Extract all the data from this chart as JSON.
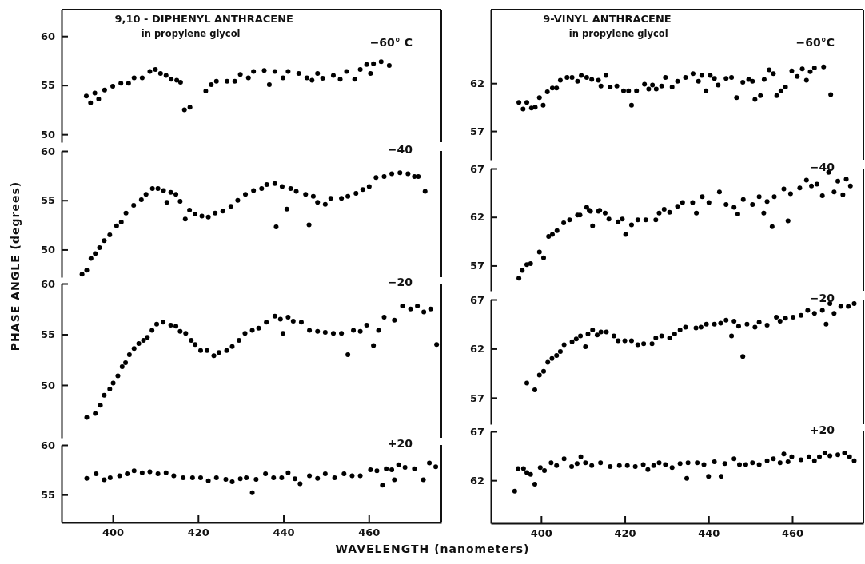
{
  "chart_data": [
    {
      "type": "scatter",
      "title": "9,10 - DIPHENYL ANTHRACENE",
      "subtitle": "in propylene glycol",
      "ylabel": "PHASE ANGLE (degrees)",
      "marker": "circle",
      "xlim": [
        388,
        477
      ],
      "ylim": [
        49.2,
        62.7
      ],
      "yticks": [
        50,
        55,
        60
      ],
      "tick_labels": "y",
      "series": [
        {
          "name": "−60° C",
          "color": "#000000",
          "x": [
            393.8,
            394.8,
            395.8,
            396.7,
            398.1,
            400,
            401.9,
            403.7,
            405,
            406.9,
            408.7,
            410,
            411.2,
            412.5,
            413.7,
            415,
            415.9,
            416.8,
            418.1,
            421.8,
            423.1,
            424.3,
            426.8,
            428.6,
            429.9,
            431.8,
            433,
            435.5,
            436.7,
            438,
            439.9,
            441.1,
            443.6,
            445.5,
            446.7,
            448,
            449.2,
            451.7,
            453.3,
            454.8,
            456.7,
            458,
            459.5,
            460.4,
            461.1,
            462.9,
            464.8
          ],
          "values": [
            53.9,
            53.2,
            54.2,
            53.6,
            54.5,
            54.9,
            55.2,
            55.2,
            55.75,
            55.75,
            56.4,
            56.6,
            56.2,
            56,
            55.6,
            55.5,
            55.3,
            52.5,
            52.75,
            54.4,
            55.05,
            55.4,
            55.4,
            55.4,
            56.1,
            55.75,
            56.4,
            56.5,
            55.05,
            56.4,
            55.75,
            56.4,
            56.2,
            55.75,
            55.5,
            56.2,
            55.7,
            56,
            55.6,
            56.4,
            55.6,
            56.6,
            57.1,
            56.2,
            57.2,
            57.4,
            57
          ]
        }
      ]
    },
    {
      "type": "scatter",
      "marker": "circle",
      "xlim": [
        388,
        477
      ],
      "ylim": [
        47.2,
        60
      ],
      "yticks": [
        50,
        55,
        60
      ],
      "tick_labels": "y",
      "series": [
        {
          "name": "−40",
          "color": "#000000",
          "x": [
            392.8,
            393.9,
            394.9,
            395.9,
            396.9,
            398,
            399.3,
            400.9,
            402,
            403.1,
            404.9,
            406.7,
            407.8,
            409.3,
            410.6,
            411.9,
            412.7,
            413.6,
            414.8,
            415.8,
            417,
            418,
            419.3,
            420.9,
            422.4,
            424,
            425.8,
            427.7,
            429.3,
            431.1,
            433,
            434.9,
            436.1,
            438,
            438.3,
            439.7,
            440.8,
            441.7,
            443,
            445.2,
            446,
            447,
            448,
            449.8,
            451.1,
            453.6,
            455.1,
            457,
            458.6,
            460.1,
            461.7,
            463.6,
            465.4,
            467.3,
            469.2,
            470.7,
            471.6,
            473.2
          ],
          "values": [
            47.5,
            47.9,
            49.1,
            49.6,
            50.2,
            50.9,
            51.5,
            52.4,
            52.8,
            53.7,
            54.5,
            55.05,
            55.6,
            56.2,
            56.2,
            56,
            54.8,
            55.8,
            55.6,
            54.9,
            53.1,
            54,
            53.6,
            53.4,
            53.3,
            53.7,
            53.9,
            54.4,
            55,
            55.6,
            56,
            56.2,
            56.6,
            56.7,
            52.3,
            56.4,
            54.1,
            56.2,
            55.9,
            55.6,
            52.5,
            55.4,
            54.8,
            54.6,
            55.2,
            55.2,
            55.4,
            55.7,
            56.1,
            56.4,
            57.3,
            57.4,
            57.7,
            57.8,
            57.7,
            57.4,
            57.4,
            55.9
          ]
        }
      ]
    },
    {
      "type": "scatter",
      "marker": "circle",
      "xlim": [
        388,
        477
      ],
      "ylim": [
        44.8,
        60
      ],
      "yticks": [
        50,
        55,
        60
      ],
      "tick_labels": "y",
      "series": [
        {
          "name": "−20",
          "color": "#000000",
          "x": [
            393.9,
            395.9,
            397.1,
            398,
            399.3,
            400.1,
            401.2,
            402.2,
            403,
            403.9,
            405,
            406.1,
            407.2,
            408.1,
            409.2,
            410.3,
            411.8,
            413.6,
            414.8,
            415.8,
            417.1,
            418.4,
            419.3,
            420.6,
            422.1,
            423.7,
            424.9,
            426.7,
            428,
            429.6,
            431,
            432.7,
            434.2,
            436,
            438,
            439.3,
            439.9,
            441.1,
            442.3,
            444.2,
            446.1,
            448,
            449.8,
            451.7,
            453.6,
            455.1,
            456.4,
            458,
            459.5,
            461.1,
            462.3,
            463.6,
            466,
            467.9,
            469.8,
            471.4,
            472.9,
            474.5,
            475.9
          ],
          "values": [
            46.8,
            47.2,
            48,
            49,
            49.6,
            50.2,
            50.9,
            51.8,
            52.2,
            53,
            53.6,
            54.1,
            54.4,
            54.7,
            55.4,
            56,
            56.2,
            55.9,
            55.8,
            55.3,
            55.1,
            54.4,
            54,
            53.4,
            53.4,
            52.9,
            53.2,
            53.4,
            53.8,
            54.4,
            55.1,
            55.4,
            55.6,
            56.2,
            56.8,
            56.5,
            55.1,
            56.7,
            56.3,
            56.2,
            55.4,
            55.3,
            55.2,
            55.1,
            55.1,
            53,
            55.4,
            55.3,
            55.9,
            53.9,
            55.4,
            56.7,
            56.4,
            57.8,
            57.5,
            57.8,
            57.2,
            57.5,
            54
          ]
        }
      ]
    },
    {
      "type": "scatter",
      "xlabel": "WAVELENGTH (nanometers)",
      "marker": "circle",
      "xlim": [
        388,
        477
      ],
      "xticks": [
        400,
        420,
        440,
        460
      ],
      "ylim": [
        52.2,
        60
      ],
      "yticks": [
        55,
        60
      ],
      "series": [
        {
          "name": "+20",
          "color": "#000000",
          "x": [
            393.9,
            396.1,
            398,
            399.4,
            401.6,
            403.4,
            405,
            406.9,
            408.7,
            410.6,
            412.5,
            414.3,
            416.5,
            418.7,
            420.6,
            422.4,
            424.3,
            426.5,
            428,
            429.9,
            431.3,
            432.7,
            433.6,
            435.8,
            437.7,
            439.6,
            441.1,
            442.7,
            443.9,
            446.1,
            448,
            449.8,
            452,
            454.2,
            456.1,
            458,
            460.4,
            461.9,
            463.2,
            464.1,
            465.4,
            466,
            467,
            468.5,
            470.7,
            472.8,
            474.2,
            475.7
          ],
          "values": [
            56.65,
            57.1,
            56.5,
            56.7,
            56.9,
            57.1,
            57.4,
            57.2,
            57.3,
            57.1,
            57.2,
            56.9,
            56.7,
            56.7,
            56.7,
            56.4,
            56.7,
            56.55,
            56.3,
            56.6,
            56.7,
            55.2,
            56.55,
            57.1,
            56.7,
            56.7,
            57.2,
            56.6,
            56.1,
            56.9,
            56.65,
            57.1,
            56.7,
            57.1,
            56.9,
            56.9,
            57.5,
            57.4,
            55.95,
            57.6,
            57.5,
            56.5,
            58,
            57.75,
            57.6,
            56.5,
            58.2,
            57.8
          ]
        }
      ]
    },
    {
      "type": "scatter",
      "title": "9-VINYL ANTHRACENE",
      "subtitle": "in propylene glycol",
      "marker": "circle",
      "xlim": [
        388,
        477
      ],
      "ylim": [
        54,
        69.7
      ],
      "yticks": [
        57,
        62
      ],
      "tick_labels": "y",
      "series": [
        {
          "name": "−60°C",
          "color": "#000000",
          "x": [
            394.7,
            395.7,
            396.6,
            397.7,
            398.6,
            399.6,
            400.5,
            401.5,
            402.7,
            403.7,
            404.6,
            406.2,
            407.4,
            408.7,
            409.6,
            410.9,
            412.1,
            413.7,
            414.3,
            415.5,
            416.5,
            418.1,
            419.7,
            420.9,
            421.6,
            422.8,
            424.7,
            425.7,
            426.6,
            427.5,
            428.8,
            429.7,
            431.3,
            432.6,
            434.5,
            436.3,
            437.6,
            438.4,
            439.4,
            440.4,
            441.4,
            442.3,
            444.2,
            445.5,
            446.7,
            448.2,
            449.6,
            450.5,
            451.1,
            452.4,
            453.3,
            454.5,
            455.5,
            456.3,
            457.3,
            458.4,
            459.9,
            461.2,
            462.4,
            463.4,
            464.3,
            465.3,
            467.5,
            469.2
          ],
          "values": [
            60,
            59.3,
            60,
            59.4,
            59.5,
            60.5,
            59.7,
            61.1,
            61.5,
            61.5,
            62.3,
            62.6,
            62.6,
            62.2,
            62.8,
            62.6,
            62.4,
            62.3,
            61.7,
            62.8,
            61.6,
            61.7,
            61.2,
            61.2,
            59.7,
            61.2,
            61.9,
            61.4,
            61.8,
            61.4,
            61.7,
            62.6,
            61.6,
            62.2,
            62.6,
            63,
            62.2,
            62.8,
            61.2,
            62.8,
            62.5,
            61.8,
            62.5,
            62.6,
            60.5,
            62.1,
            62.4,
            62.2,
            60.3,
            60.7,
            62.4,
            63.4,
            63,
            60.7,
            61.2,
            61.6,
            63.3,
            62.7,
            63.5,
            62.3,
            63.2,
            63.6,
            63.7,
            60.8
          ]
        }
      ]
    },
    {
      "type": "scatter",
      "marker": "circle",
      "xlim": [
        388,
        477
      ],
      "ylim": [
        54.4,
        67
      ],
      "yticks": [
        57,
        62,
        67
      ],
      "tick_labels": "y",
      "series": [
        {
          "name": "−40",
          "color": "#000000",
          "x": [
            394.7,
            395.5,
            396.6,
            397.5,
            399.6,
            400.6,
            401.8,
            402.7,
            403.8,
            405.4,
            406.8,
            408.7,
            409.3,
            410.9,
            411.5,
            411.8,
            412.3,
            413.7,
            414,
            415.3,
            416.2,
            418.4,
            419.4,
            420.2,
            421.6,
            423.1,
            425,
            427.4,
            428.2,
            429.4,
            430.7,
            432.6,
            433.8,
            436.2,
            437.1,
            438.5,
            440.1,
            442.6,
            444.2,
            446.1,
            447,
            448.3,
            450.5,
            452.1,
            453.2,
            454,
            455.2,
            455.7,
            458,
            459,
            459.6,
            461.8,
            463.4,
            464.6,
            465.9,
            467.2,
            468.7,
            470,
            470.9,
            472.1,
            472.9,
            473.9
          ],
          "values": [
            55.7,
            56.5,
            57.1,
            57.2,
            58.4,
            57.8,
            60,
            60.2,
            60.6,
            61.4,
            61.7,
            62.2,
            62.2,
            63,
            62.7,
            62.6,
            61.1,
            62.6,
            62.7,
            62.4,
            61.8,
            61.5,
            61.8,
            60.2,
            61.2,
            61.7,
            61.7,
            61.7,
            62.4,
            62.8,
            62.5,
            63.1,
            63.5,
            63.5,
            62.4,
            64.1,
            63.5,
            64.6,
            63.3,
            63,
            62.3,
            63.8,
            63.3,
            64.1,
            62.4,
            63.6,
            61,
            64.1,
            64.9,
            61.6,
            64.4,
            65,
            65.8,
            65.2,
            65.4,
            64.2,
            66.6,
            64.6,
            65.7,
            64.3,
            65.9,
            65.2
          ]
        }
      ]
    },
    {
      "type": "scatter",
      "marker": "circle",
      "xlim": [
        388,
        477
      ],
      "ylim": [
        54.3,
        67
      ],
      "yticks": [
        57,
        62,
        67
      ],
      "tick_labels": "y",
      "series": [
        {
          "name": "−20",
          "color": "#000000",
          "x": [
            396.6,
            398.5,
            399.6,
            400.6,
            401.6,
            402.6,
            403.7,
            404.6,
            405.5,
            407.4,
            408.4,
            409.4,
            410.6,
            411.2,
            412.3,
            413.4,
            414.3,
            415.6,
            417.4,
            418.4,
            420,
            421.6,
            423.1,
            424.5,
            426.5,
            427.4,
            428.8,
            430.7,
            431.9,
            433.2,
            434.5,
            437,
            438.2,
            439.5,
            441.4,
            442.9,
            444.2,
            445.5,
            446.1,
            447.2,
            448.2,
            449.2,
            451.1,
            452.1,
            454,
            456.2,
            457.1,
            458.4,
            460.2,
            462.1,
            463.7,
            465.3,
            467.2,
            468.1,
            469,
            470,
            471.6,
            473.4,
            474.8
          ],
          "values": [
            58.5,
            57.8,
            59.3,
            59.7,
            60.6,
            61,
            61.3,
            61.7,
            62.4,
            62.7,
            63,
            63.3,
            62.2,
            63.5,
            63.9,
            63.4,
            63.7,
            63.7,
            63.3,
            62.8,
            62.8,
            62.8,
            62.4,
            62.5,
            62.5,
            63.1,
            63.3,
            63.1,
            63.5,
            63.9,
            64.2,
            64.1,
            64.2,
            64.5,
            64.5,
            64.6,
            64.9,
            63.3,
            64.8,
            64.3,
            61.2,
            64.5,
            64.2,
            64.7,
            64.4,
            65.2,
            64.8,
            65.1,
            65.2,
            65.4,
            65.9,
            65.6,
            65.9,
            64.5,
            66.6,
            65.6,
            66.3,
            66.3,
            66.6
          ]
        }
      ]
    },
    {
      "type": "scatter",
      "marker": "circle",
      "xlim": [
        388,
        477
      ],
      "xticks": [
        400,
        420,
        440,
        460
      ],
      "ylim": [
        57.6,
        67
      ],
      "yticks": [
        62,
        67
      ],
      "series": [
        {
          "name": "+20",
          "color": "#000000",
          "x": [
            393.7,
            394.5,
            395.8,
            396.6,
            397.5,
            398.5,
            399.8,
            400.8,
            402.4,
            403.7,
            405.5,
            407.3,
            408.6,
            409.5,
            410.6,
            412.1,
            414.2,
            416.5,
            418.7,
            420.6,
            422.5,
            424.4,
            425.5,
            426.9,
            428.2,
            429.7,
            431.3,
            433.2,
            434.8,
            435.1,
            437.3,
            438.9,
            440,
            441.4,
            443,
            443.9,
            446.1,
            447.4,
            448.9,
            450.5,
            452.1,
            454,
            455.5,
            457.1,
            458,
            459,
            459.9,
            462.1,
            464,
            465.3,
            466.5,
            467.8,
            469,
            470.9,
            472.5,
            473.7,
            474.8
          ],
          "values": [
            60.9,
            63.2,
            63.2,
            62.8,
            62.6,
            61.6,
            63.3,
            63,
            63.8,
            63.5,
            64.2,
            63.4,
            63.7,
            64.4,
            63.8,
            63.5,
            63.8,
            63.4,
            63.5,
            63.5,
            63.4,
            63.6,
            63.1,
            63.5,
            63.8,
            63.6,
            63.3,
            63.7,
            62.2,
            63.8,
            63.8,
            63.6,
            62.4,
            63.9,
            62.4,
            63.7,
            64.2,
            63.6,
            63.6,
            63.8,
            63.6,
            64,
            64.2,
            63.8,
            64.7,
            63.9,
            64.4,
            64.1,
            64.4,
            64,
            64.4,
            64.8,
            64.5,
            64.6,
            64.8,
            64.4,
            64
          ]
        }
      ]
    }
  ]
}
